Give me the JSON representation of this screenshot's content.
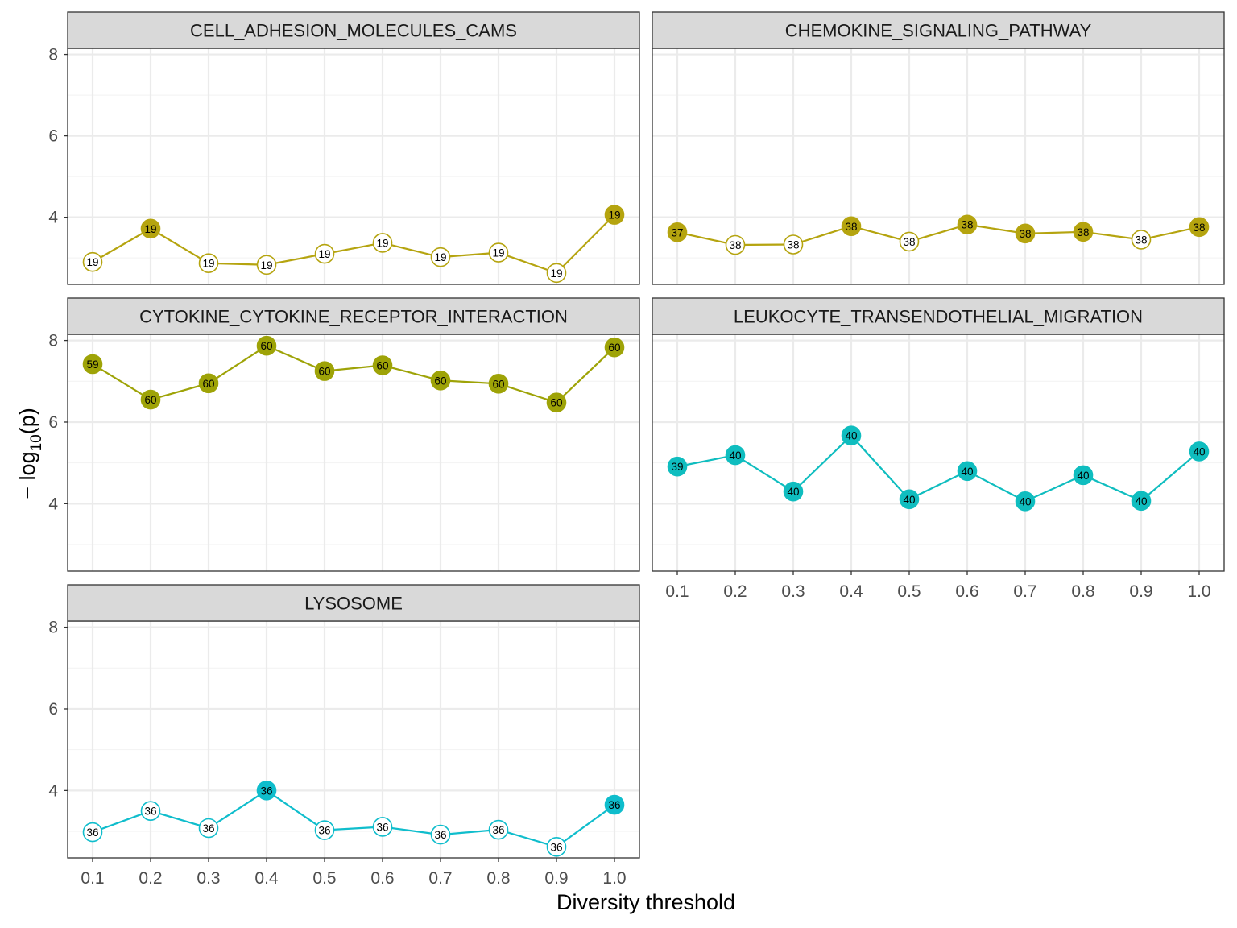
{
  "chart_data": {
    "type": "line",
    "xlabel": "Diversity threshold",
    "ylabel": "− log10(p)",
    "ylabel_parts": {
      "prefix": "− log",
      "sub": "10",
      "suffix": "(p)"
    },
    "x": [
      0.1,
      0.2,
      0.3,
      0.4,
      0.5,
      0.6,
      0.7,
      0.8,
      0.9,
      1.0
    ],
    "x_tick_labels": [
      "0.1",
      "0.2",
      "0.3",
      "0.4",
      "0.5",
      "0.6",
      "0.7",
      "0.8",
      "0.9",
      "1.0"
    ],
    "y_ticks": [
      4,
      6,
      8
    ],
    "ylim": [
      2.35,
      8.15
    ],
    "grid": true,
    "facets": [
      {
        "title": "CELL_ADHESION_MOLECULES_CAMS",
        "color": "#B5A40F",
        "y": [
          2.9,
          3.72,
          2.87,
          2.83,
          3.1,
          3.37,
          3.02,
          3.13,
          2.63,
          4.06
        ],
        "labels": [
          "19",
          "19",
          "19",
          "19",
          "19",
          "19",
          "19",
          "19",
          "19",
          "19"
        ],
        "filled": [
          false,
          true,
          false,
          false,
          false,
          false,
          false,
          false,
          false,
          true
        ]
      },
      {
        "title": "CHEMOKINE_SIGNALING_PATHWAY",
        "color": "#B5A40F",
        "y": [
          3.63,
          3.32,
          3.33,
          3.78,
          3.4,
          3.82,
          3.6,
          3.64,
          3.45,
          3.76
        ],
        "labels": [
          "37",
          "38",
          "38",
          "38",
          "38",
          "38",
          "38",
          "38",
          "38",
          "38"
        ],
        "filled": [
          true,
          false,
          false,
          true,
          false,
          true,
          true,
          true,
          false,
          true
        ]
      },
      {
        "title": "CYTOKINE_CYTOKINE_RECEPTOR_INTERACTION",
        "color": "#9EA307",
        "y": [
          7.42,
          6.55,
          6.95,
          7.87,
          7.25,
          7.39,
          7.02,
          6.94,
          6.48,
          7.83
        ],
        "labels": [
          "59",
          "60",
          "60",
          "60",
          "60",
          "60",
          "60",
          "60",
          "60",
          "60"
        ],
        "filled": [
          true,
          true,
          true,
          true,
          true,
          true,
          true,
          true,
          true,
          true
        ]
      },
      {
        "title": "LEUKOCYTE_TRANSENDOTHELIAL_MIGRATION",
        "color": "#0FBDBF",
        "y": [
          4.91,
          5.19,
          4.3,
          5.67,
          4.11,
          4.8,
          4.06,
          4.7,
          4.07,
          5.28
        ],
        "labels": [
          "39",
          "40",
          "40",
          "40",
          "40",
          "40",
          "40",
          "40",
          "40",
          "40"
        ],
        "filled": [
          true,
          true,
          true,
          true,
          true,
          true,
          true,
          true,
          true,
          true
        ]
      },
      {
        "title": "LYSOSOME",
        "color": "#0FBDCC",
        "y": [
          2.98,
          3.5,
          3.08,
          4.0,
          3.03,
          3.11,
          2.92,
          3.04,
          2.62,
          3.65
        ],
        "labels": [
          "36",
          "36",
          "36",
          "36",
          "36",
          "36",
          "36",
          "36",
          "36",
          "36"
        ],
        "filled": [
          false,
          false,
          false,
          true,
          false,
          false,
          false,
          false,
          false,
          true
        ]
      }
    ]
  }
}
